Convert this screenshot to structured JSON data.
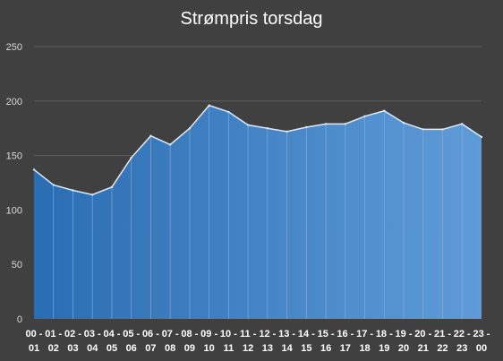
{
  "chart_data": {
    "type": "area",
    "title": "Strømpris torsdag",
    "xlabel": "",
    "ylabel": "",
    "ylim": [
      0,
      250
    ],
    "yticks": [
      0,
      50,
      100,
      150,
      200,
      250
    ],
    "grid": true,
    "legend": "none",
    "categories": [
      "00 - 01",
      "01 - 02",
      "02 - 03",
      "03 - 04",
      "04 - 05",
      "05 - 06",
      "06 - 07",
      "07 - 08",
      "08 - 09",
      "09 - 10",
      "10 - 11",
      "11 - 12",
      "12 - 13",
      "13 - 14",
      "14 - 15",
      "15 - 16",
      "16 - 17",
      "17 - 18",
      "18 - 19",
      "19 - 20",
      "20 - 21",
      "21 - 22",
      "22 - 23",
      "23 - 00"
    ],
    "values": [
      137,
      123,
      118,
      114,
      121,
      148,
      168,
      160,
      175,
      196,
      190,
      178,
      175,
      172,
      176,
      179,
      179,
      186,
      191,
      180,
      174,
      174,
      179,
      167
    ],
    "colors": {
      "background": "#404040",
      "fill_start": "#2a6db2",
      "fill_end": "#5f9bd8",
      "line": "#dce9f7",
      "grid": "#5e5e5e"
    }
  }
}
